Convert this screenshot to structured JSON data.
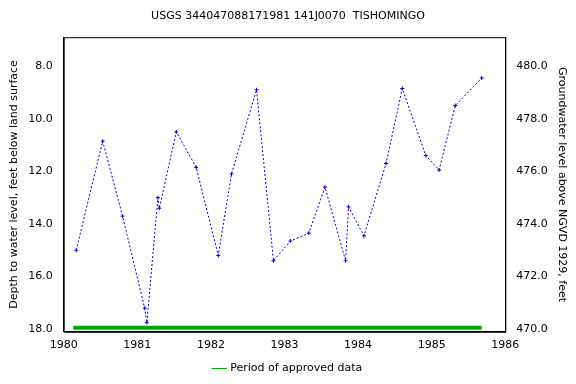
{
  "chart_data": {
    "type": "line",
    "title": "USGS 344047088171981 141J0070  TISHOMINGO",
    "y_label": "Depth to water level, feet below land surface",
    "y2_label": "Groundwater level above NGVD 1929, feet",
    "xlim": [
      1980,
      1986
    ],
    "xticks": [
      1980,
      1981,
      1982,
      1983,
      1984,
      1985,
      1986
    ],
    "ylim": [
      18.1,
      6.9
    ],
    "yticks": [
      {
        "value": 8,
        "label": "8.0"
      },
      {
        "value": 10,
        "label": "10.0"
      },
      {
        "value": 12,
        "label": "12.0"
      },
      {
        "value": 14,
        "label": "14.0"
      },
      {
        "value": 16,
        "label": "16.0"
      },
      {
        "value": 18,
        "label": "18.0"
      }
    ],
    "y2lim": [
      469.9,
      481.1
    ],
    "y2ticks": [
      {
        "value": 470,
        "label": "470.0"
      },
      {
        "value": 472,
        "label": "472.0"
      },
      {
        "value": 474,
        "label": "474.0"
      },
      {
        "value": 476,
        "label": "476.0"
      },
      {
        "value": 478,
        "label": "478.0"
      },
      {
        "value": 480,
        "label": "480.0"
      }
    ],
    "grid": false,
    "legend": "bottom",
    "series": [
      {
        "color": "#0000cc",
        "marker": "cross",
        "line_style": "dotted",
        "x": [
          1980.17,
          1980.53,
          1980.8,
          1981.1,
          1981.13,
          1981.28,
          1981.3,
          1981.53,
          1981.8,
          1982.1,
          1982.28,
          1982.62,
          1982.85,
          1983.08,
          1983.33,
          1983.55,
          1983.83,
          1983.87,
          1984.08,
          1984.38,
          1984.6,
          1984.92,
          1985.1,
          1985.32,
          1985.68
        ],
        "values": [
          15.0,
          10.85,
          13.7,
          17.2,
          17.75,
          13.0,
          13.4,
          10.5,
          11.85,
          15.2,
          12.1,
          8.9,
          15.4,
          14.65,
          14.35,
          12.6,
          15.4,
          13.35,
          14.45,
          11.7,
          8.85,
          11.4,
          11.95,
          9.5,
          8.45
        ]
      },
      {
        "name": "Period of approved data",
        "color": "#00aa00",
        "marker": "none",
        "line_style": "solid",
        "x": [
          1980.13,
          1985.68
        ],
        "values": [
          17.95,
          17.95
        ]
      }
    ]
  }
}
